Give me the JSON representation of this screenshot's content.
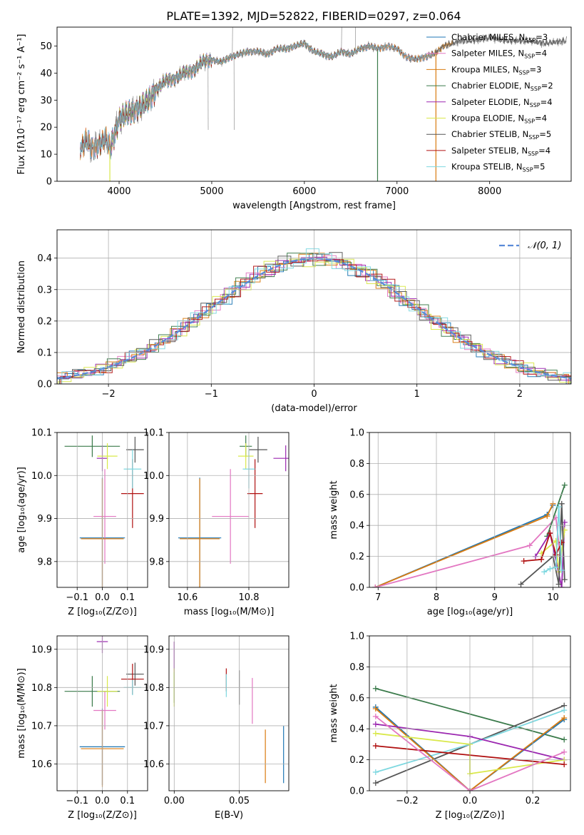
{
  "figure_title": "PLATE=1392, MJD=52822, FIBERID=0297, z=0.064",
  "colors": {
    "chabrier_miles": "#1f77b4",
    "salpeter_miles": "#e377c2",
    "kroupa_miles": "#d97b10",
    "chabrier_elodie": "#3a7a4a",
    "salpeter_elodie": "#9b27b0",
    "kroupa_elodie": "#d9e84a",
    "chabrier_stelib": "#555555",
    "salpeter_stelib": "#b01010",
    "kroupa_stelib": "#7ed8e0",
    "normal_curve": "#5a8ad8",
    "data": "#808080"
  },
  "chart_data": [
    {
      "id": "spectrum",
      "type": "line",
      "xlabel": "wavelength [Angstrom, rest frame]",
      "ylabel": "Flux [fλ10⁻¹⁷ erg cm⁻² s⁻¹ A⁻¹]",
      "xlim": [
        3330,
        8880
      ],
      "ylim": [
        0,
        57
      ],
      "xticks": [
        4000,
        5000,
        6000,
        7000,
        8000
      ],
      "yticks": [
        0,
        10,
        20,
        30,
        40,
        50
      ],
      "grid": false,
      "legend_position": "top-right",
      "data_range": [
        3580,
        8830
      ],
      "anchors_x": [
        3580,
        3650,
        3700,
        3800,
        3850,
        3900,
        4000,
        4100,
        4200,
        4300,
        4400,
        4500,
        4600,
        4700,
        4800,
        4900,
        5000,
        5100,
        5200,
        5300,
        5400,
        5500,
        5600,
        5700,
        5800,
        5900,
        6000,
        6100,
        6200,
        6300,
        6400,
        6500,
        6600,
        6700,
        6800,
        6900,
        7000,
        7100,
        7200,
        7300,
        7400,
        7500,
        7600,
        7700,
        7800,
        8000,
        8200,
        8400,
        8600,
        8830
      ],
      "anchors_y": [
        12,
        15,
        12,
        14,
        16,
        12,
        23,
        25,
        27,
        29,
        34,
        37,
        38,
        40,
        41,
        44,
        45,
        44,
        46,
        47,
        48,
        48,
        47,
        49,
        49,
        50,
        51,
        48,
        47,
        46,
        48,
        47,
        49,
        50,
        49,
        50,
        49,
        46,
        45,
        46,
        47,
        50,
        51,
        52,
        52,
        53,
        52,
        52,
        51,
        52
      ],
      "legend": [
        "Chabrier MILES, N_SSP=3",
        "Salpeter MILES, N_SSP=4",
        "Kroupa MILES, N_SSP=3",
        "Chabrier ELODIE, N_SSP=2",
        "Salpeter ELODIE, N_SSP=4",
        "Kroupa ELODIE, N_SSP=4",
        "Chabrier STELIB, N_SSP=5",
        "Salpeter STELIB, N_SSP=4",
        "Kroupa STELIB, N_SSP=5"
      ],
      "series": [
        {
          "key": "chabrier_miles",
          "range": [
            3580,
            7400
          ],
          "drop": null
        },
        {
          "key": "salpeter_miles",
          "range": [
            3580,
            7400
          ],
          "drop": null
        },
        {
          "key": "kroupa_miles",
          "range": [
            3580,
            7600
          ],
          "drop": 7420
        },
        {
          "key": "chabrier_elodie",
          "range": [
            3900,
            6790
          ],
          "drop": 6790
        },
        {
          "key": "salpeter_elodie",
          "range": [
            3900,
            6790
          ],
          "drop": null
        },
        {
          "key": "kroupa_elodie",
          "range": [
            3900,
            6790
          ],
          "drop": 3900
        },
        {
          "key": "chabrier_stelib",
          "range": [
            3580,
            8830
          ],
          "drop": null
        },
        {
          "key": "salpeter_stelib",
          "range": [
            3580,
            7400
          ],
          "drop": null
        },
        {
          "key": "kroupa_stelib",
          "range": [
            3580,
            7400
          ],
          "drop": null
        }
      ]
    },
    {
      "id": "residuals",
      "type": "bar",
      "xlabel": "(data-model)/error",
      "ylabel": "Normed distribution",
      "xlim": [
        -2.5,
        2.5
      ],
      "ylim": [
        0,
        0.49
      ],
      "xticks": [
        -2,
        -1,
        0,
        1,
        2
      ],
      "xtick_labels": [
        "−2",
        "−1",
        "0",
        "1",
        "2"
      ],
      "yticks": [
        0.0,
        0.1,
        0.2,
        0.3,
        0.4
      ],
      "ytick_labels": [
        "0.0",
        "0.1",
        "0.2",
        "0.3",
        "0.4"
      ],
      "grid": true,
      "legend_position": "top-right",
      "legend_label": "𝒩(0, 1)",
      "bin_width": 0.125,
      "bins_from": -2.5,
      "bin_count": 40,
      "series_jitter": [
        [
          0.004,
          -0.006,
          0.008,
          -0.01,
          0.012,
          -0.004,
          0.006,
          -0.012,
          0.01,
          0.002
        ],
        [
          -0.006,
          0.01,
          -0.004,
          0.014,
          -0.008,
          0.006,
          -0.012,
          0.004,
          0.008,
          -0.01
        ],
        [
          0.01,
          -0.004,
          0.012,
          -0.006,
          0.004,
          -0.014,
          0.008,
          0.01,
          -0.006,
          0.002
        ],
        [
          -0.01,
          0.006,
          0.002,
          -0.008,
          0.014,
          0.004,
          -0.006,
          -0.012,
          0.01,
          0.008
        ],
        [
          0.012,
          0.004,
          -0.01,
          0.006,
          -0.004,
          0.016,
          -0.008,
          0.002,
          -0.012,
          0.006
        ],
        [
          -0.004,
          -0.012,
          0.006,
          0.01,
          -0.006,
          0.002,
          0.014,
          -0.008,
          0.004,
          -0.01
        ],
        [
          0.006,
          0.012,
          -0.008,
          -0.004,
          0.01,
          -0.01,
          0.002,
          0.016,
          -0.006,
          0.004
        ],
        [
          -0.012,
          0.002,
          0.01,
          -0.006,
          0.008,
          0.012,
          -0.014,
          0.006,
          0.002,
          -0.008
        ],
        [
          0.008,
          -0.01,
          -0.002,
          0.012,
          -0.012,
          0.006,
          0.01,
          -0.004,
          -0.008,
          0.014
        ]
      ]
    },
    {
      "id": "z_vs_age",
      "type": "scatter",
      "xlabel": "Z [log₁₀(Z/Z⊙)]",
      "ylabel": "age  [log₁₀(age/yr)]",
      "xlim": [
        -0.18,
        0.18
      ],
      "ylim": [
        9.74,
        10.1
      ],
      "xticks": [
        -0.1,
        0.0,
        0.1
      ],
      "xtick_labels": [
        "−0.1",
        "0.0",
        "0.1"
      ],
      "yticks": [
        9.8,
        9.9,
        10.0,
        10.1
      ],
      "ytick_labels": [
        "9.8",
        "9.9",
        "10.0",
        "10.1"
      ],
      "grid": true,
      "points": [
        {
          "key": "chabrier_miles",
          "x": 0.0,
          "xerr": 0.09,
          "y": 9.855,
          "yerr": 0.14
        },
        {
          "key": "salpeter_miles",
          "x": 0.01,
          "xerr": 0.045,
          "y": 9.905,
          "yerr": 0.11
        },
        {
          "key": "kroupa_miles",
          "x": 0.0,
          "xerr": 0.085,
          "y": 9.853,
          "yerr": 0.14
        },
        {
          "key": "chabrier_elodie",
          "x": -0.04,
          "xerr": 0.11,
          "y": 10.068,
          "yerr": 0.025
        },
        {
          "key": "salpeter_elodie",
          "x": 0.0,
          "xerr": 0.022,
          "y": 10.04,
          "yerr": 0.03
        },
        {
          "key": "kroupa_elodie",
          "x": 0.02,
          "xerr": 0.04,
          "y": 10.045,
          "yerr": 0.03
        },
        {
          "key": "chabrier_stelib",
          "x": 0.13,
          "xerr": 0.035,
          "y": 10.06,
          "yerr": 0.03
        },
        {
          "key": "salpeter_stelib",
          "x": 0.12,
          "xerr": 0.045,
          "y": 9.958,
          "yerr": 0.08
        },
        {
          "key": "kroupa_stelib",
          "x": 0.12,
          "xerr": 0.035,
          "y": 10.015,
          "yerr": 0.045
        }
      ]
    },
    {
      "id": "mass_vs_age",
      "type": "scatter",
      "xlabel": "mass [log₁₀(M/M⊙)]",
      "ylabel": "",
      "xlim": [
        10.54,
        10.93
      ],
      "ylim": [
        9.74,
        10.1
      ],
      "xticks": [
        10.6,
        10.8
      ],
      "xtick_labels": [
        "10.6",
        "10.8"
      ],
      "yticks": [
        9.8,
        9.9,
        10.0,
        10.1
      ],
      "ytick_labels": [
        "9.8",
        "9.9",
        "10.0",
        "10.1"
      ],
      "grid": true,
      "points": [
        {
          "key": "chabrier_miles",
          "x": 10.64,
          "xerr": 0.07,
          "y": 9.855,
          "yerr": 0.14
        },
        {
          "key": "salpeter_miles",
          "x": 10.74,
          "xerr": 0.06,
          "y": 9.905,
          "yerr": 0.11
        },
        {
          "key": "kroupa_miles",
          "x": 10.64,
          "xerr": 0.065,
          "y": 9.853,
          "yerr": 0.14
        },
        {
          "key": "chabrier_elodie",
          "x": 10.79,
          "xerr": 0.02,
          "y": 10.068,
          "yerr": 0.025
        },
        {
          "key": "salpeter_elodie",
          "x": 10.92,
          "xerr": 0.04,
          "y": 10.04,
          "yerr": 0.03
        },
        {
          "key": "kroupa_elodie",
          "x": 10.79,
          "xerr": 0.025,
          "y": 10.045,
          "yerr": 0.03
        },
        {
          "key": "chabrier_stelib",
          "x": 10.83,
          "xerr": 0.03,
          "y": 10.06,
          "yerr": 0.03
        },
        {
          "key": "salpeter_stelib",
          "x": 10.82,
          "xerr": 0.025,
          "y": 9.958,
          "yerr": 0.08
        },
        {
          "key": "kroupa_stelib",
          "x": 10.8,
          "xerr": 0.02,
          "y": 10.015,
          "yerr": 0.045
        }
      ]
    },
    {
      "id": "age_vs_weight",
      "type": "line",
      "xlabel": "age  [log₁₀(age/yr)]",
      "ylabel": "mass weight",
      "xlim": [
        6.85,
        10.3
      ],
      "ylim": [
        0,
        1.0
      ],
      "xticks": [
        7,
        8,
        9,
        10
      ],
      "xtick_labels": [
        "7",
        "8",
        "9",
        "10"
      ],
      "yticks": [
        0.0,
        0.2,
        0.4,
        0.6,
        0.8,
        1.0
      ],
      "ytick_labels": [
        "0.0",
        "0.2",
        "0.4",
        "0.6",
        "0.8",
        "1.0"
      ],
      "grid": true,
      "series": [
        {
          "key": "chabrier_miles",
          "x": [
            6.95,
            9.9,
            10.0
          ],
          "y": [
            0.0,
            0.47,
            0.53
          ]
        },
        {
          "key": "kroupa_miles",
          "x": [
            6.95,
            9.9,
            10.0
          ],
          "y": [
            0.0,
            0.46,
            0.54
          ]
        },
        {
          "key": "salpeter_miles",
          "x": [
            6.95,
            9.6,
            10.05,
            10.1
          ],
          "y": [
            0.0,
            0.27,
            0.45,
            0.28
          ]
        },
        {
          "key": "chabrier_elodie",
          "x": [
            9.9,
            10.2
          ],
          "y": [
            0.33,
            0.66
          ]
        },
        {
          "key": "salpeter_elodie",
          "x": [
            9.7,
            9.95,
            10.15,
            10.2
          ],
          "y": [
            0.2,
            0.35,
            0.0,
            0.42
          ]
        },
        {
          "key": "kroupa_elodie",
          "x": [
            9.8,
            10.05,
            10.1,
            10.2
          ],
          "y": [
            0.22,
            0.3,
            0.1,
            0.37
          ]
        },
        {
          "key": "chabrier_stelib",
          "x": [
            9.45,
            10.0,
            10.1,
            10.15,
            10.2
          ],
          "y": [
            0.02,
            0.2,
            0.02,
            0.54,
            0.05
          ]
        },
        {
          "key": "salpeter_stelib",
          "x": [
            9.5,
            9.8,
            9.95,
            10.05,
            10.15
          ],
          "y": [
            0.17,
            0.18,
            0.35,
            0.21,
            0.29
          ]
        },
        {
          "key": "kroupa_stelib",
          "x": [
            9.85,
            9.95,
            10.05,
            10.1,
            10.15
          ],
          "y": [
            0.1,
            0.12,
            0.13,
            0.52,
            0.11
          ]
        }
      ]
    },
    {
      "id": "z_vs_mass",
      "type": "scatter",
      "xlabel": "Z [log₁₀(Z/Z⊙)]",
      "ylabel": "mass [log₁₀(M/M⊙)]",
      "xlim": [
        -0.18,
        0.18
      ],
      "ylim": [
        10.53,
        10.935
      ],
      "xticks": [
        -0.1,
        0.0,
        0.1
      ],
      "xtick_labels": [
        "−0.1",
        "0.0",
        "0.1"
      ],
      "yticks": [
        10.6,
        10.7,
        10.8,
        10.9
      ],
      "ytick_labels": [
        "10.6",
        "10.7",
        "10.8",
        "10.9"
      ],
      "grid": true,
      "points": [
        {
          "key": "chabrier_miles",
          "x": 0.0,
          "xerr": 0.09,
          "y": 10.645,
          "yerr": 0.1
        },
        {
          "key": "salpeter_miles",
          "x": 0.01,
          "xerr": 0.045,
          "y": 10.74,
          "yerr": 0.05
        },
        {
          "key": "kroupa_miles",
          "x": 0.0,
          "xerr": 0.085,
          "y": 10.64,
          "yerr": 0.1
        },
        {
          "key": "chabrier_elodie",
          "x": -0.04,
          "xerr": 0.11,
          "y": 10.79,
          "yerr": 0.04
        },
        {
          "key": "salpeter_elodie",
          "x": 0.0,
          "xerr": 0.022,
          "y": 10.92,
          "yerr": 0.03
        },
        {
          "key": "kroupa_elodie",
          "x": 0.02,
          "xerr": 0.04,
          "y": 10.79,
          "yerr": 0.04
        },
        {
          "key": "chabrier_stelib",
          "x": 0.13,
          "xerr": 0.035,
          "y": 10.835,
          "yerr": 0.03
        },
        {
          "key": "salpeter_stelib",
          "x": 0.12,
          "xerr": 0.045,
          "y": 10.822,
          "yerr": 0.04
        },
        {
          "key": "kroupa_stelib",
          "x": 0.12,
          "xerr": 0.035,
          "y": 10.8,
          "yerr": 0.02
        }
      ]
    },
    {
      "id": "ebv_vs_mass",
      "type": "scatter",
      "xlabel": "E(B-V)",
      "ylabel": "",
      "xlim": [
        -0.004,
        0.088
      ],
      "ylim": [
        10.53,
        10.935
      ],
      "xticks": [
        0.0,
        0.05
      ],
      "xtick_labels": [
        "0.00",
        "0.05"
      ],
      "yticks": [
        10.6,
        10.7,
        10.8,
        10.9
      ],
      "ytick_labels": [
        "10.6",
        "10.7",
        "10.8",
        "10.9"
      ],
      "grid": true,
      "points": [
        {
          "key": "chabrier_miles",
          "x": 0.084,
          "xerr": 0,
          "y": 10.625,
          "yerr": 0.075
        },
        {
          "key": "salpeter_miles",
          "x": 0.06,
          "xerr": 0,
          "y": 10.765,
          "yerr": 0.06
        },
        {
          "key": "kroupa_miles",
          "x": 0.07,
          "xerr": 0,
          "y": 10.62,
          "yerr": 0.07
        },
        {
          "key": "chabrier_elodie",
          "x": 0.0,
          "xerr": 0,
          "y": 10.8,
          "yerr": 0.04
        },
        {
          "key": "salpeter_elodie",
          "x": 0.0,
          "xerr": 0,
          "y": 10.88,
          "yerr": 0.04
        },
        {
          "key": "kroupa_elodie",
          "x": 0.0,
          "xerr": 0,
          "y": 10.8,
          "yerr": 0.05
        },
        {
          "key": "chabrier_stelib",
          "x": 0.05,
          "xerr": 0,
          "y": 10.8,
          "yerr": 0.045
        },
        {
          "key": "salpeter_stelib",
          "x": 0.04,
          "xerr": 0,
          "y": 10.82,
          "yerr": 0.03
        },
        {
          "key": "kroupa_stelib",
          "x": 0.04,
          "xerr": 0,
          "y": 10.805,
          "yerr": 0.03
        }
      ]
    },
    {
      "id": "z_vs_weight",
      "type": "line",
      "xlabel": "Z [log₁₀(Z/Z⊙)]",
      "ylabel": "mass weight",
      "xlim": [
        -0.32,
        0.32
      ],
      "ylim": [
        0,
        1.0
      ],
      "xticks": [
        -0.2,
        0.0,
        0.2
      ],
      "xtick_labels": [
        "−0.2",
        "0.0",
        "0.2"
      ],
      "yticks": [
        0.0,
        0.2,
        0.4,
        0.6,
        0.8,
        1.0
      ],
      "ytick_labels": [
        "0.0",
        "0.2",
        "0.4",
        "0.6",
        "0.8",
        "1.0"
      ],
      "grid": true,
      "series": [
        {
          "key": "chabrier_elodie",
          "x": [
            -0.3,
            0.3
          ],
          "y": [
            0.66,
            0.33
          ]
        },
        {
          "key": "chabrier_stelib",
          "x": [
            -0.3,
            0.3
          ],
          "y": [
            0.05,
            0.55
          ]
        },
        {
          "key": "kroupa_stelib",
          "x": [
            -0.3,
            0.0,
            0.3
          ],
          "y": [
            0.12,
            0.3,
            0.52
          ]
        },
        {
          "key": "chabrier_miles",
          "x": [
            -0.3,
            0.0,
            0.3
          ],
          "y": [
            0.54,
            0.0,
            0.46
          ]
        },
        {
          "key": "kroupa_miles",
          "x": [
            -0.3,
            0.0,
            0.3
          ],
          "y": [
            0.53,
            0.0,
            0.47
          ]
        },
        {
          "key": "salpeter_elodie",
          "x": [
            -0.3,
            0.0,
            0.3
          ],
          "y": [
            0.43,
            0.35,
            0.2
          ]
        },
        {
          "key": "kroupa_elodie",
          "x": [
            -0.3,
            0.0,
            0.0,
            0.3
          ],
          "y": [
            0.37,
            0.3,
            0.11,
            0.2
          ]
        },
        {
          "key": "salpeter_stelib",
          "x": [
            -0.3,
            0.3
          ],
          "y": [
            0.29,
            0.17
          ]
        },
        {
          "key": "salpeter_miles",
          "x": [
            -0.3,
            0.0,
            0.3
          ],
          "y": [
            0.48,
            0.0,
            0.25
          ]
        }
      ]
    }
  ]
}
